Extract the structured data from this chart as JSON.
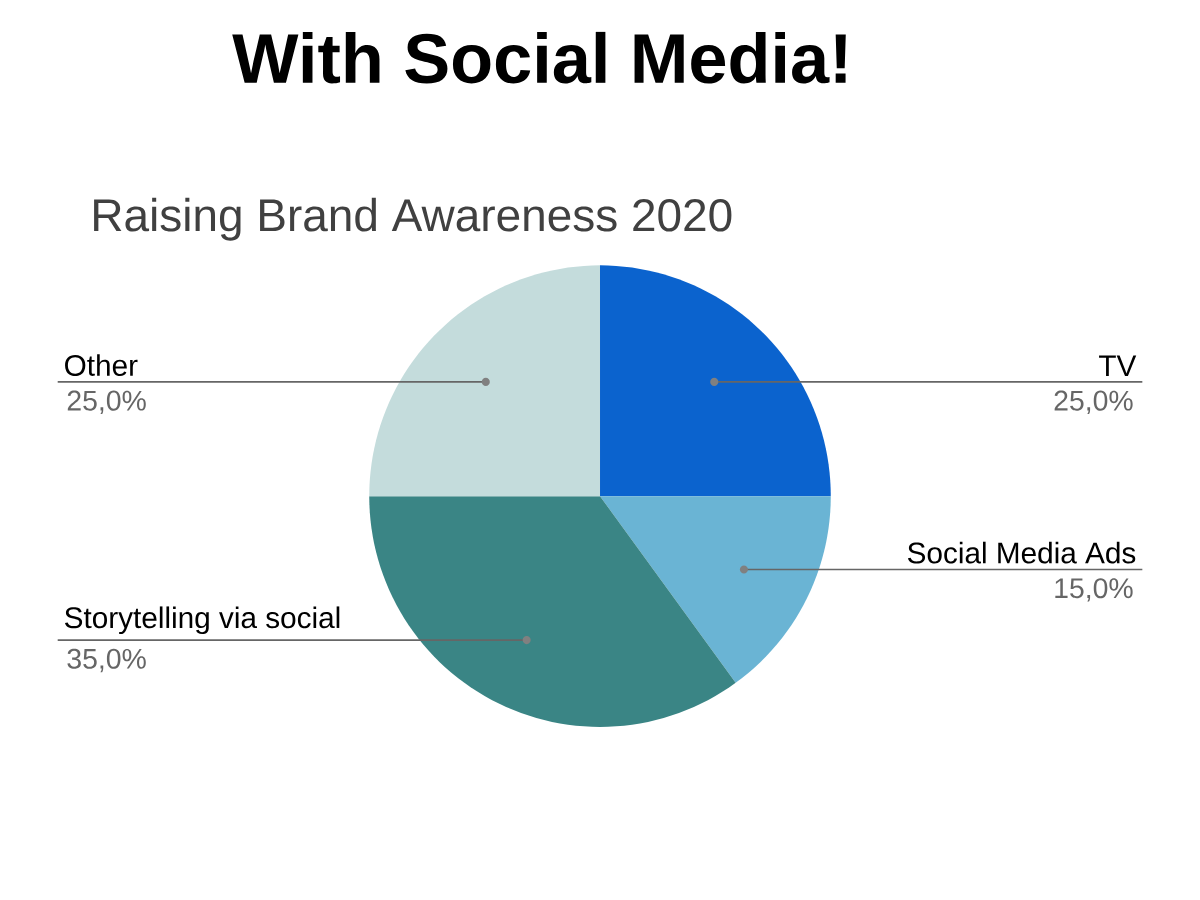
{
  "chart_data": {
    "type": "pie",
    "title": "With Social Media!",
    "subtitle": "Raising Brand Awareness 2020",
    "categories": [
      "TV",
      "Social Media Ads",
      "Storytelling via social",
      "Other"
    ],
    "values": [
      25,
      15,
      35,
      25
    ],
    "colors": [
      "#0b63ce",
      "#6ab4d4",
      "#3a8585",
      "#c4dcdc"
    ],
    "value_labels": [
      "25,0%",
      "15,0%",
      "35,0%",
      "25,0%"
    ]
  }
}
